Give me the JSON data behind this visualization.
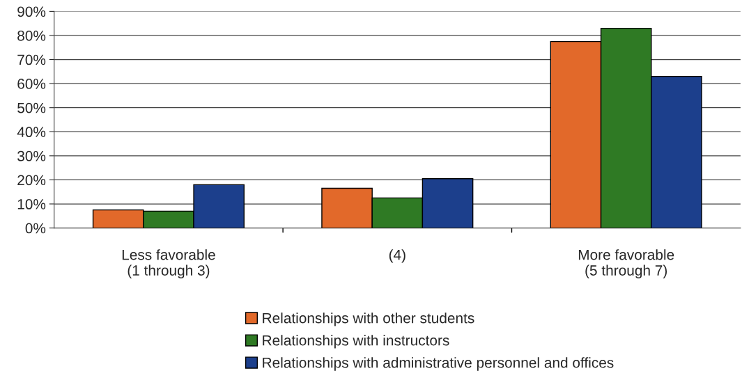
{
  "chart_data": {
    "type": "bar",
    "categories": [
      "Less favorable\n(1 through 3)",
      "(4)",
      "More favorable\n(5 through 7)"
    ],
    "series": [
      {
        "name": "Relationships with other students",
        "color": "#e2692a",
        "values": [
          7.5,
          16.5,
          77.5
        ]
      },
      {
        "name": "Relationships with instructors",
        "color": "#2f7a24",
        "values": [
          7,
          12.5,
          83
        ]
      },
      {
        "name": "Relationships with administrative personnel and offices",
        "color": "#1c3f8c",
        "values": [
          18,
          20.5,
          63
        ]
      }
    ],
    "ylim": [
      0,
      90
    ],
    "yticks": [
      {
        "value": 0,
        "label": "0%"
      },
      {
        "value": 10,
        "label": "10%"
      },
      {
        "value": 20,
        "label": "20%"
      },
      {
        "value": 30,
        "label": "30%"
      },
      {
        "value": 40,
        "label": "40%"
      },
      {
        "value": 50,
        "label": "50%"
      },
      {
        "value": 60,
        "label": "60%"
      },
      {
        "value": 70,
        "label": "70%"
      },
      {
        "value": 80,
        "label": "80%"
      },
      {
        "value": 90,
        "label": "90%"
      }
    ],
    "grid": "y",
    "legend": "bottom"
  }
}
